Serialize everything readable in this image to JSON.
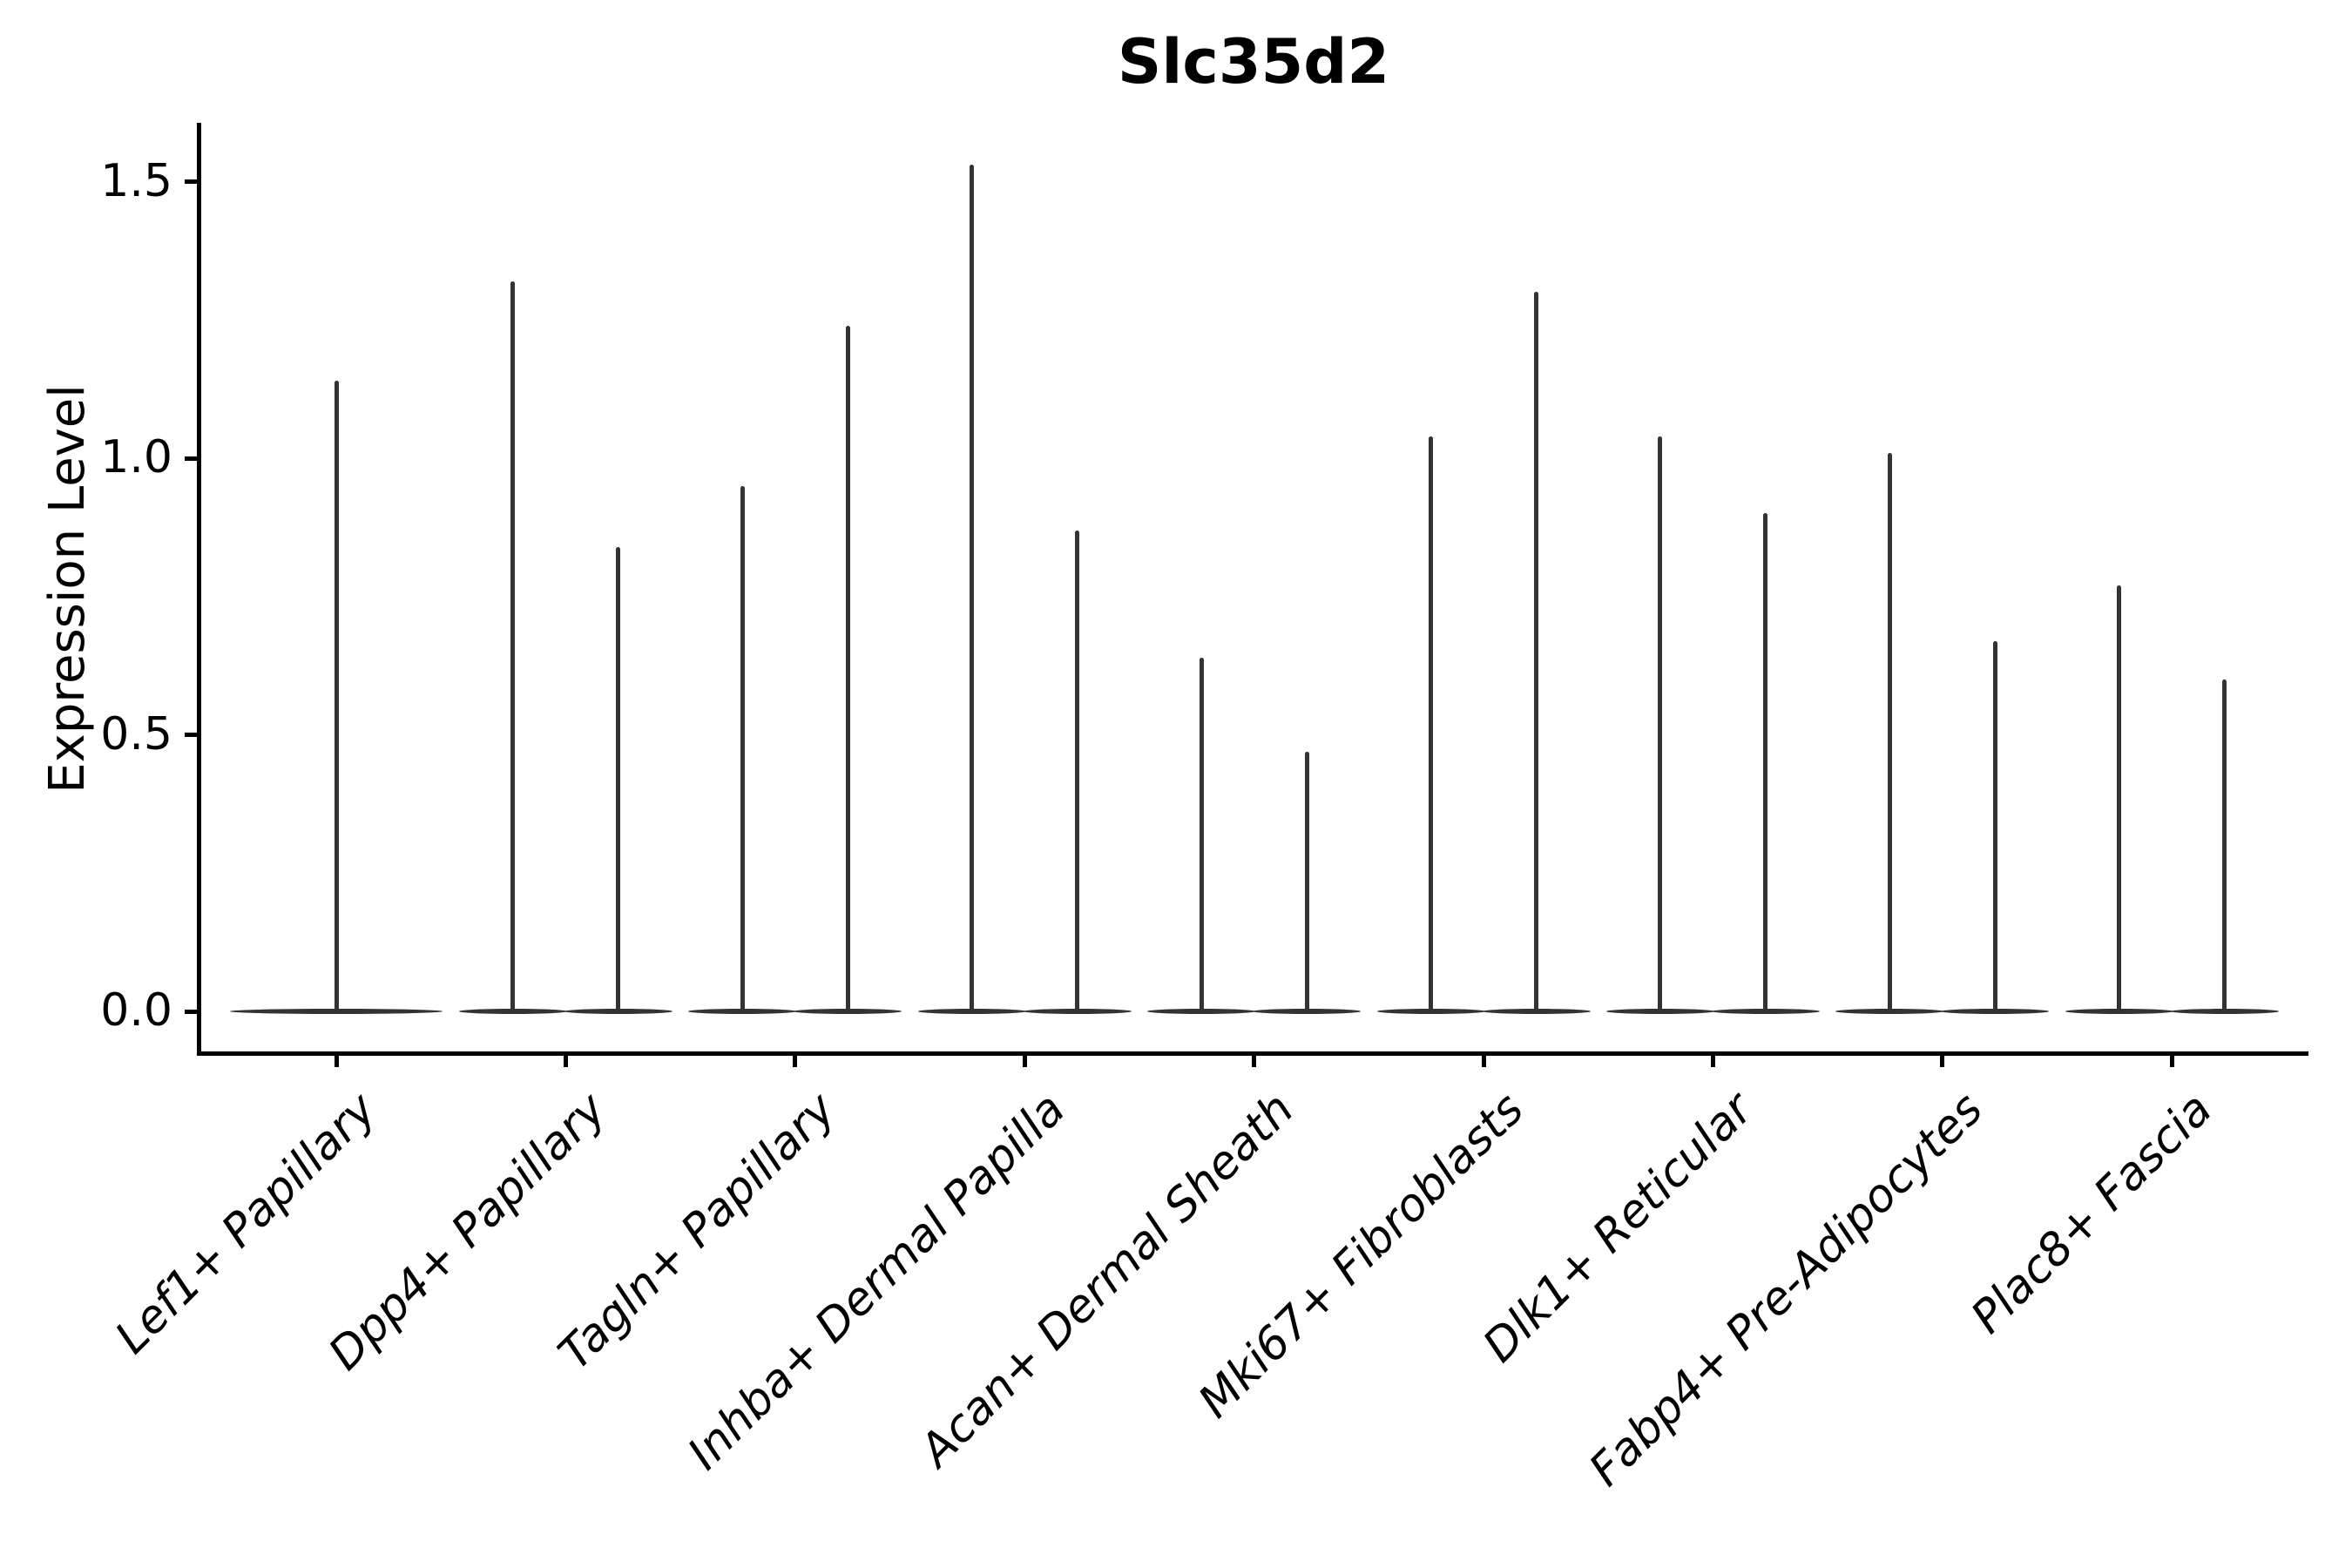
{
  "chart_data": {
    "type": "violin",
    "title": "Slc35d2",
    "xlabel": "",
    "ylabel": "Expression Level",
    "categories": [
      "Lef1+ Papillary",
      "Dpp4+ Papillary",
      "Tagln+ Papillary",
      "Inhba+ Dermal Papilla",
      "Acan+ Dermal Sheath",
      "Mki67+ Fibroblasts",
      "Dlk1+ Reticular",
      "Fabp4+ Pre-Adipocytes",
      "Plac8+ Fascia"
    ],
    "series": [
      {
        "category": "Lef1+ Papillary",
        "violin_max_values": [
          1.14
        ]
      },
      {
        "category": "Dpp4+ Papillary",
        "violin_max_values": [
          1.32,
          0.84
        ]
      },
      {
        "category": "Tagln+ Papillary",
        "violin_max_values": [
          0.95,
          1.24
        ]
      },
      {
        "category": "Inhba+ Dermal Papilla",
        "violin_max_values": [
          1.53,
          0.87
        ]
      },
      {
        "category": "Acan+ Dermal Sheath",
        "violin_max_values": [
          0.64,
          0.47
        ]
      },
      {
        "category": "Mki67+ Fibroblasts",
        "violin_max_values": [
          1.04,
          1.3
        ]
      },
      {
        "category": "Dlk1+ Reticular",
        "violin_max_values": [
          1.04,
          0.9
        ]
      },
      {
        "category": "Fabp4+ Pre-Adipocytes",
        "violin_max_values": [
          1.01,
          0.67
        ]
      },
      {
        "category": "Plac8+ Fascia",
        "violin_max_values": [
          0.77,
          0.6
        ]
      }
    ],
    "violins_per_category_note": "each violin collapses to a flat base at 0 with a thin density spike up to its max value",
    "ytick_labels": [
      "1.5",
      "1.0",
      "0.5",
      "0.0"
    ],
    "ytick_values": [
      1.5,
      1.0,
      0.5,
      0.0
    ],
    "ylim": [
      -0.08,
      1.6
    ],
    "grid": false,
    "legend_position": "none",
    "violin_color": "#333333",
    "axis_color": "#000000"
  }
}
